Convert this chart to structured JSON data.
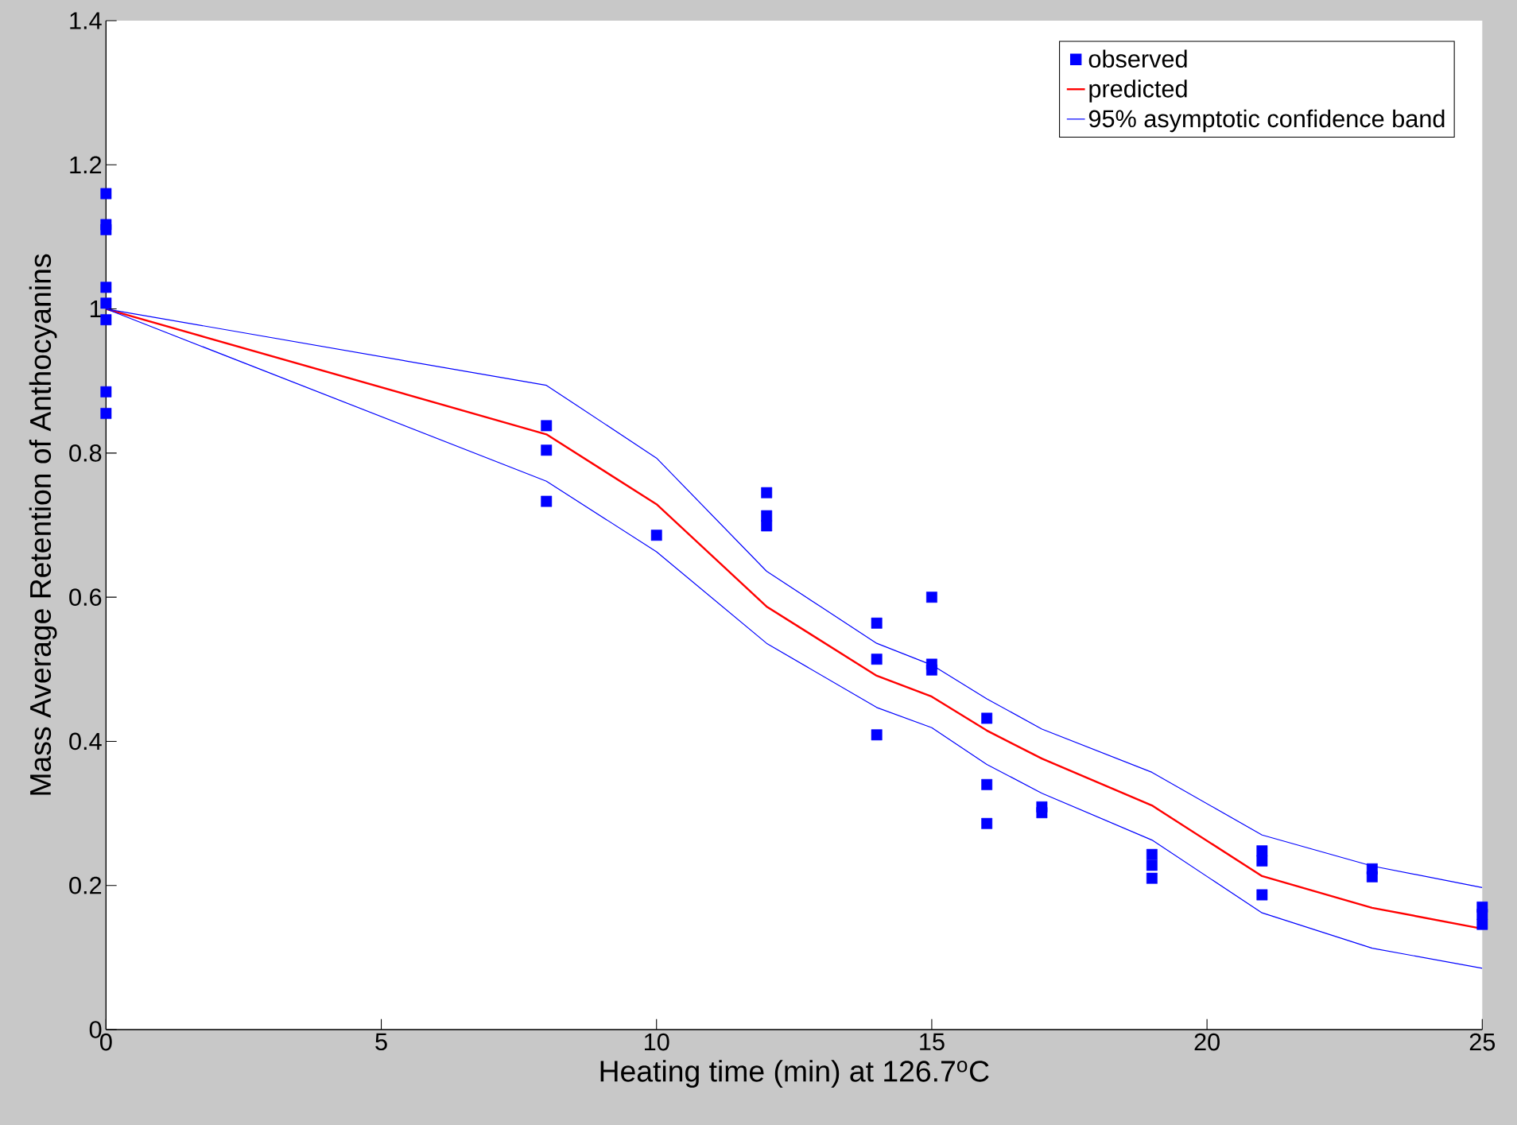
{
  "chart_data": {
    "type": "line",
    "xlabel": "Heating time (min) at 126.7$^{o}$C",
    "ylabel": "Mass Average Retention of Anthocyanins",
    "xlim": [
      0,
      25
    ],
    "ylim": [
      0,
      1.4
    ],
    "xticks": [
      0,
      5,
      10,
      15,
      20,
      25
    ],
    "yticks": [
      0,
      0.2,
      0.4,
      0.6,
      0.8,
      1,
      1.2,
      1.4
    ],
    "legend": "top right",
    "series": [
      {
        "name": "observed",
        "type": "scatter",
        "marker": "square",
        "color": "#0000ff",
        "x": [
          0,
          0,
          0,
          0,
          0,
          0,
          0,
          0,
          8,
          8,
          8,
          10,
          12,
          12,
          12,
          14,
          14,
          14,
          15,
          15,
          15,
          16,
          16,
          16,
          17,
          17,
          19,
          19,
          19,
          21,
          21,
          21,
          23,
          23,
          25,
          25,
          25
        ],
        "values": [
          1.16,
          1.117,
          1.11,
          1.03,
          1.008,
          0.985,
          0.885,
          0.855,
          0.838,
          0.804,
          0.733,
          0.686,
          0.745,
          0.713,
          0.699,
          0.564,
          0.514,
          0.409,
          0.6,
          0.507,
          0.499,
          0.432,
          0.34,
          0.286,
          0.309,
          0.301,
          0.243,
          0.228,
          0.21,
          0.248,
          0.234,
          0.187,
          0.223,
          0.212,
          0.17,
          0.16,
          0.146
        ]
      },
      {
        "name": "predicted",
        "color": "#ff0000",
        "x": [
          0,
          8,
          10,
          12,
          14,
          15,
          16,
          17,
          19,
          21,
          23,
          25
        ],
        "values": [
          1,
          0.826,
          0.729,
          0.587,
          0.491,
          0.462,
          0.415,
          0.376,
          0.311,
          0.213,
          0.169,
          0.14
        ]
      },
      {
        "name": "95% asymptotic confidence band",
        "color": "#0000ff",
        "x": [
          0,
          8,
          10,
          12,
          14,
          15,
          16,
          17,
          19,
          21,
          23,
          25
        ],
        "values": [
          1,
          0.894,
          0.793,
          0.636,
          0.536,
          0.506,
          0.459,
          0.417,
          0.357,
          0.27,
          0.227,
          0.197
        ]
      },
      {
        "color": "#0000ff",
        "x": [
          0,
          8,
          10,
          12,
          14,
          15,
          16,
          17,
          19,
          21,
          23,
          25
        ],
        "values": [
          1,
          0.761,
          0.663,
          0.536,
          0.447,
          0.419,
          0.368,
          0.328,
          0.263,
          0.162,
          0.113,
          0.085
        ]
      }
    ]
  }
}
